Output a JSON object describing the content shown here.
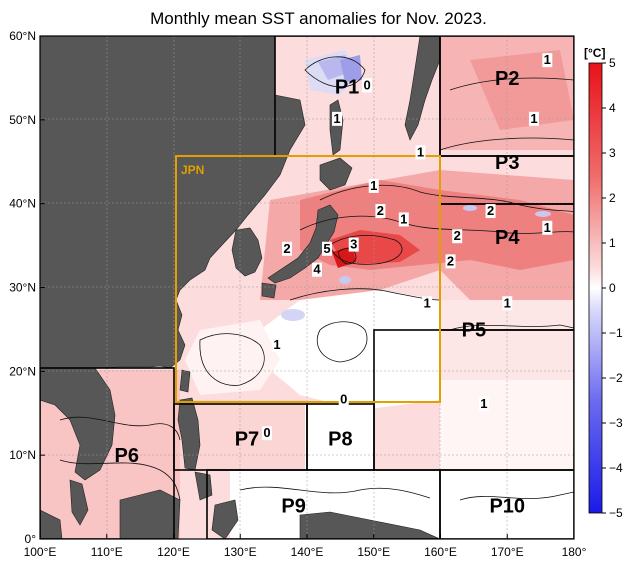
{
  "title": "Monthly mean SST anomalies for Nov. 2023.",
  "colors": {
    "land": "#575757",
    "positive_max": "#e8121a",
    "negative_max": "#1a1ae8",
    "region_box": "#000000",
    "jpn_box": "#e0a000",
    "grid": "#aaaaaa"
  },
  "axes": {
    "lon_labels": [
      "100°E",
      "110°E",
      "120°E",
      "130°E",
      "140°E",
      "150°E",
      "160°E",
      "170°E",
      "180°"
    ],
    "lat_labels": [
      "0°",
      "10°N",
      "20°N",
      "30°N",
      "40°N",
      "50°N",
      "60°N"
    ],
    "lon_range": [
      100,
      180
    ],
    "lat_range": [
      0,
      60
    ]
  },
  "colorbar": {
    "unit": "[°C]",
    "ticks": [
      "5",
      "4",
      "3",
      "2",
      "1",
      "0",
      "−1",
      "−2",
      "−3",
      "−4",
      "−5"
    ],
    "range": [
      -5,
      5
    ]
  },
  "jpn_label": "JPN",
  "regions": [
    {
      "name": "P1",
      "lon": 146,
      "lat": 54
    },
    {
      "name": "P2",
      "lon": 170,
      "lat": 55
    },
    {
      "name": "P3",
      "lon": 170,
      "lat": 45
    },
    {
      "name": "P4",
      "lon": 170,
      "lat": 36
    },
    {
      "name": "P5",
      "lon": 165,
      "lat": 25
    },
    {
      "name": "P6",
      "lon": 113,
      "lat": 10
    },
    {
      "name": "P7",
      "lon": 131,
      "lat": 12
    },
    {
      "name": "P8",
      "lon": 145,
      "lat": 12
    },
    {
      "name": "P9",
      "lon": 138,
      "lat": 4
    },
    {
      "name": "P10",
      "lon": 170,
      "lat": 4
    }
  ],
  "contour_labels": [
    {
      "text": "0",
      "lon": 149,
      "lat": 54
    },
    {
      "text": "1",
      "lon": 176,
      "lat": 57
    },
    {
      "text": "1",
      "lon": 174,
      "lat": 50
    },
    {
      "text": "1",
      "lon": 144.5,
      "lat": 50
    },
    {
      "text": "1",
      "lon": 157,
      "lat": 46
    },
    {
      "text": "1",
      "lon": 150,
      "lat": 42
    },
    {
      "text": "2",
      "lon": 151,
      "lat": 39
    },
    {
      "text": "1",
      "lon": 154.5,
      "lat": 38
    },
    {
      "text": "2",
      "lon": 167.5,
      "lat": 39
    },
    {
      "text": "1",
      "lon": 176,
      "lat": 37
    },
    {
      "text": "2",
      "lon": 162.5,
      "lat": 36
    },
    {
      "text": "2",
      "lon": 161.5,
      "lat": 33
    },
    {
      "text": "2",
      "lon": 137,
      "lat": 34.5
    },
    {
      "text": "5",
      "lon": 143,
      "lat": 34.5
    },
    {
      "text": "4",
      "lon": 141.5,
      "lat": 32
    },
    {
      "text": "3",
      "lon": 147,
      "lat": 35
    },
    {
      "text": "1",
      "lon": 158,
      "lat": 28
    },
    {
      "text": "1",
      "lon": 170,
      "lat": 28
    },
    {
      "text": "1",
      "lon": 135.5,
      "lat": 23
    },
    {
      "text": "0",
      "lon": 145.5,
      "lat": 16.5
    },
    {
      "text": "0",
      "lon": 134,
      "lat": 12.5
    },
    {
      "text": "1",
      "lon": 166.5,
      "lat": 16
    }
  ]
}
